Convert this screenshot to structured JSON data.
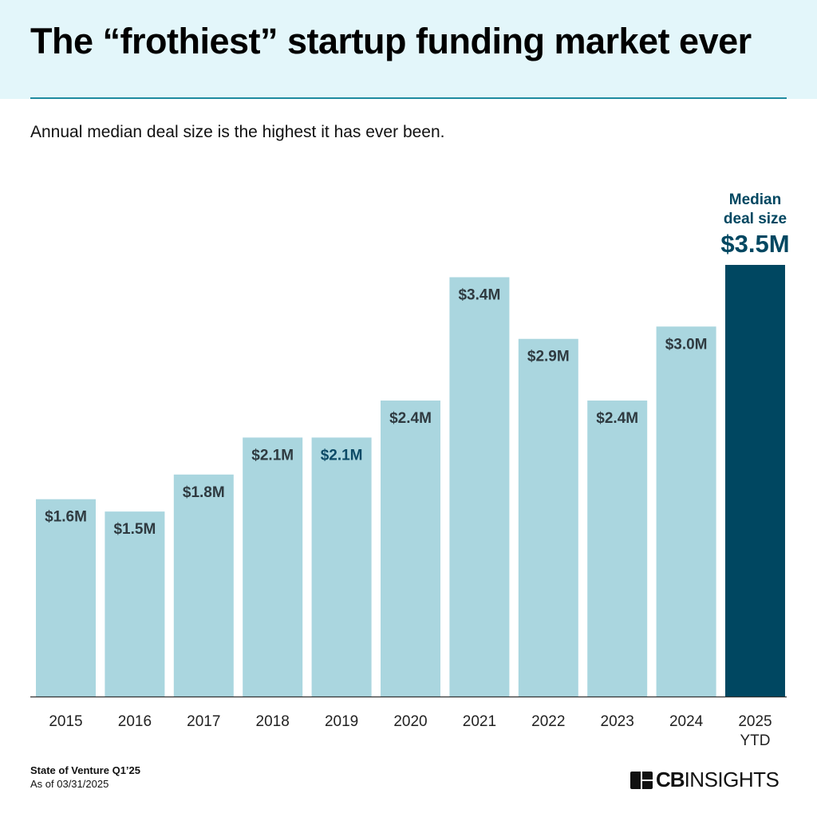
{
  "header": {
    "title": "The “frothiest” startup funding market ever",
    "subtitle": "Annual median deal size is the highest it has ever been."
  },
  "chart_data": {
    "type": "bar",
    "categories": [
      "2015",
      "2016",
      "2017",
      "2018",
      "2019",
      "2020",
      "2021",
      "2022",
      "2023",
      "2024",
      "2025 YTD"
    ],
    "values": [
      1.6,
      1.5,
      1.8,
      2.1,
      2.1,
      2.4,
      3.4,
      2.9,
      2.4,
      3.0,
      3.5
    ],
    "data_labels": [
      "$1.6M",
      "$1.5M",
      "$1.8M",
      "$2.1M",
      "$2.1M",
      "$2.4M",
      "$3.4M",
      "$2.9M",
      "$2.4M",
      "$3.0M",
      "$3.5M"
    ],
    "unit": "$M",
    "ylim": [
      0,
      3.5
    ],
    "grid": false,
    "highlight_annotation": {
      "line1": "Median",
      "line2": "deal size",
      "value": "$3.5M"
    },
    "colors": {
      "bar": "#aad6df",
      "highlight_bar": "#004761",
      "label": "#2f3a40",
      "highlight_label": "#0c4a66",
      "axis": "#333333"
    }
  },
  "footer": {
    "source": "State of Venture Q1’25",
    "as_of": "As of 03/31/2025",
    "logo_bold": "CB",
    "logo_light": "INSIGHTS"
  }
}
